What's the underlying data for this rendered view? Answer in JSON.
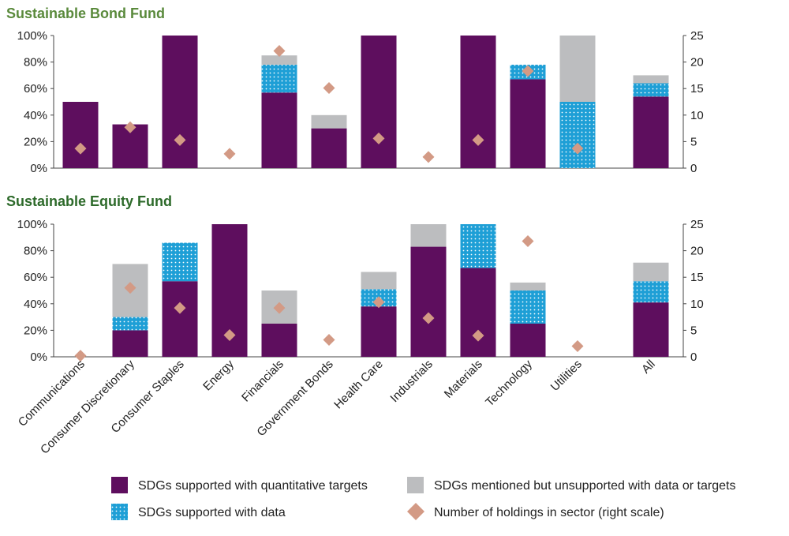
{
  "colors": {
    "quantitative": "#5e0e5e",
    "data": "#1e9fd6",
    "data_dots": "#ffffff",
    "mentioned": "#bcbdbf",
    "holdings": "#d39a85",
    "bond_title": "#5a8a3c",
    "equity_title": "#2d6a2a",
    "axis": "#444444"
  },
  "chart_data": [
    {
      "type": "bar",
      "stacked": true,
      "title": "Sustainable Bond Fund",
      "categories": [
        "Communications",
        "Consumer Discretionary",
        "Consumer Staples",
        "Energy",
        "Financials",
        "Government Bonds",
        "Health Care",
        "Industrials",
        "Materials",
        "Technology",
        "Utilities",
        "All"
      ],
      "series": [
        {
          "name": "SDGs supported with quantitative targets",
          "key": "quantitative",
          "values": [
            50,
            33,
            100,
            0,
            57,
            30,
            100,
            0,
            100,
            67,
            0,
            54
          ]
        },
        {
          "name": "SDGs supported with data",
          "key": "data",
          "values": [
            0,
            0,
            0,
            0,
            21,
            0,
            0,
            0,
            0,
            11,
            50,
            10
          ]
        },
        {
          "name": "SDGs mentioned but unsupported with data or targets",
          "key": "mentioned",
          "values": [
            0,
            0,
            0,
            0,
            7,
            10,
            0,
            0,
            0,
            0,
            50,
            6
          ]
        }
      ],
      "holdings": {
        "name": "Number of holdings in sector (right scale)",
        "values": [
          3.7,
          7.7,
          5.3,
          2.7,
          22.1,
          15.1,
          5.6,
          2.1,
          5.3,
          18.3,
          3.7,
          null
        ]
      },
      "y_ticks": [
        "0%",
        "20%",
        "40%",
        "60%",
        "80%",
        "100%"
      ],
      "y2_ticks": [
        "0",
        "5",
        "10",
        "15",
        "20",
        "25"
      ],
      "ylim": [
        0,
        100
      ],
      "y2lim": [
        0,
        25
      ]
    },
    {
      "type": "bar",
      "stacked": true,
      "title": "Sustainable Equity Fund",
      "categories": [
        "Communications",
        "Consumer Discretionary",
        "Consumer Staples",
        "Energy",
        "Financials",
        "Government Bonds",
        "Health Care",
        "Industrials",
        "Materials",
        "Technology",
        "Utilities",
        "All"
      ],
      "series": [
        {
          "name": "SDGs supported with quantitative targets",
          "key": "quantitative",
          "values": [
            0,
            20,
            57,
            100,
            25,
            0,
            38,
            83,
            67,
            25,
            0,
            41
          ]
        },
        {
          "name": "SDGs supported with data",
          "key": "data",
          "values": [
            0,
            10,
            29,
            0,
            0,
            0,
            13,
            0,
            33,
            25,
            0,
            16
          ]
        },
        {
          "name": "SDGs mentioned but unsupported with data or targets",
          "key": "mentioned",
          "values": [
            0,
            40,
            0,
            0,
            25,
            0,
            13,
            17,
            0,
            6,
            0,
            14
          ]
        }
      ],
      "holdings": {
        "name": "Number of holdings in sector (right scale)",
        "values": [
          0.2,
          13,
          9.2,
          4.1,
          9.2,
          3.2,
          10.3,
          7.3,
          4.0,
          21.8,
          2.0,
          null
        ]
      },
      "y_ticks": [
        "0%",
        "20%",
        "40%",
        "60%",
        "80%",
        "100%"
      ],
      "y2_ticks": [
        "0",
        "5",
        "10",
        "15",
        "20",
        "25"
      ],
      "ylim": [
        0,
        100
      ],
      "y2lim": [
        0,
        25
      ]
    }
  ],
  "legend": [
    {
      "key": "quantitative",
      "icon": "square",
      "label": "SDGs supported with quantitative targets"
    },
    {
      "key": "mentioned",
      "icon": "square",
      "label": "SDGs mentioned but unsupported with data or targets"
    },
    {
      "key": "data",
      "icon": "dotted-square",
      "label": "SDGs supported with data"
    },
    {
      "key": "holdings",
      "icon": "diamond",
      "label": "Number of holdings in sector (right scale)"
    }
  ]
}
